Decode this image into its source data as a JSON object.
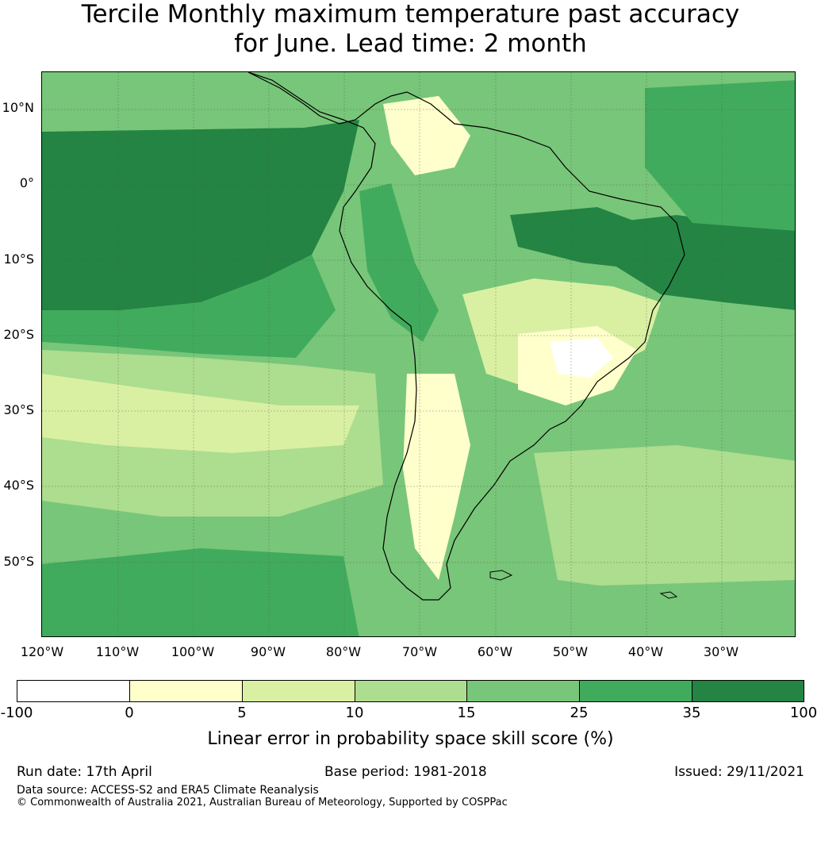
{
  "title": {
    "line1": "Tercile Monthly maximum temperature past accuracy",
    "line2": "for June. Lead time: 2 month"
  },
  "map": {
    "lat_labels": [
      "10°N",
      "0°",
      "10°S",
      "20°S",
      "30°S",
      "40°S",
      "50°S"
    ],
    "lon_labels": [
      "120°W",
      "110°W",
      "100°W",
      "90°W",
      "80°W",
      "70°W",
      "60°W",
      "50°W",
      "40°W",
      "30°W"
    ]
  },
  "colorbar": {
    "ticks": [
      "-100",
      "0",
      "5",
      "10",
      "15",
      "25",
      "35",
      "100"
    ],
    "colors": [
      "#ffffff",
      "#ffffcc",
      "#d9f0a3",
      "#addd8e",
      "#78c679",
      "#41ab5d",
      "#238443"
    ],
    "label": "Linear error in probability space skill score (%)"
  },
  "footer": {
    "run_date": "Run date: 17th April",
    "base_period": "Base period: 1981-2018",
    "issued": "Issued: 29/11/2021",
    "data_source": "Data source: ACCESS-S2 and ERA5 Climate Reanalysis",
    "copyright": "© Commonwealth of Australia 2021, Australian Bureau of Meteorology, Supported by COSPPac"
  }
}
